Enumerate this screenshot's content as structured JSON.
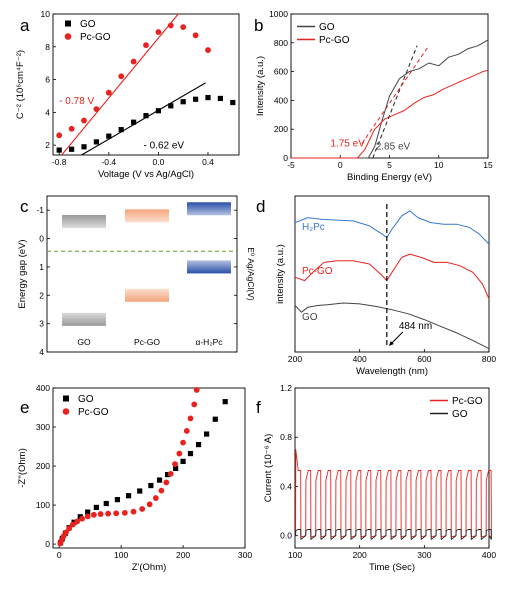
{
  "chart_data": [
    {
      "panel": "a",
      "type": "scatter",
      "xlabel": "Voltage (V vs Ag/AgCl)",
      "ylabel": "C⁻² (10⁶cm⁴F⁻²)",
      "xlim": [
        -0.85,
        0.65
      ],
      "ylim": [
        1.4,
        10
      ],
      "xticks": [
        -0.8,
        -0.4,
        0.0,
        0.4
      ],
      "yticks": [
        2,
        4,
        6,
        8,
        10
      ],
      "legend_position": "top-left",
      "series": [
        {
          "name": "GO",
          "marker": "square",
          "color": "#000000",
          "x": [
            -0.8,
            -0.7,
            -0.6,
            -0.5,
            -0.4,
            -0.3,
            -0.2,
            -0.1,
            0.0,
            0.1,
            0.2,
            0.3,
            0.4,
            0.5,
            0.6
          ],
          "y": [
            1.7,
            1.75,
            1.9,
            2.2,
            2.55,
            2.95,
            3.4,
            3.8,
            4.1,
            4.4,
            4.65,
            4.8,
            4.9,
            4.85,
            4.6
          ]
        },
        {
          "name": "Pc-GO",
          "marker": "circle",
          "color": "#e8231f",
          "x": [
            -0.8,
            -0.7,
            -0.6,
            -0.5,
            -0.4,
            -0.3,
            -0.2,
            -0.1,
            0.0,
            0.1,
            0.2,
            0.3,
            0.4
          ],
          "y": [
            2.6,
            3.0,
            3.5,
            4.2,
            5.2,
            6.2,
            7.1,
            8.1,
            8.9,
            9.3,
            9.2,
            8.7,
            7.8
          ]
        }
      ],
      "fit_lines": [
        {
          "color": "#e8231f",
          "x": [
            -0.78,
            0.16
          ],
          "y": [
            1.4,
            10.0
          ]
        },
        {
          "color": "#000000",
          "x": [
            -0.62,
            0.38
          ],
          "y": [
            1.4,
            5.8
          ]
        }
      ],
      "annotations": [
        {
          "text": "- 0.78 V",
          "color": "#e8231f",
          "x": -0.8,
          "y": 4.5
        },
        {
          "text": "- 0.62 eV",
          "color": "#000000",
          "x": -0.12,
          "y": 1.8
        }
      ]
    },
    {
      "panel": "b",
      "type": "line",
      "xlabel": "Binding Energy (eV)",
      "ylabel": "Intensity (a.u.)",
      "xlim": [
        -5,
        15
      ],
      "ylim": [
        0,
        1000
      ],
      "xticks": [
        -5,
        0,
        5,
        10,
        15
      ],
      "yticks": [
        0,
        200,
        400,
        600,
        800,
        1000
      ],
      "legend_position": "top-left",
      "series": [
        {
          "name": "GO",
          "color": "#444444",
          "x": [
            -5,
            0,
            1.75,
            2.85,
            3.5,
            4.2,
            5.0,
            6.0,
            7.0,
            8.0,
            9.0,
            10.0,
            11.0,
            12.0,
            13.0,
            14.0,
            15.0
          ],
          "y": [
            0,
            0,
            0,
            0,
            80,
            250,
            430,
            550,
            600,
            620,
            660,
            640,
            700,
            720,
            760,
            780,
            820
          ]
        },
        {
          "name": "Pc-GO",
          "color": "#e8231f",
          "x": [
            -5,
            0,
            1.75,
            2.5,
            3.5,
            4.5,
            5.5,
            6.5,
            7.5,
            8.5,
            9.5,
            10.5,
            11.5,
            12.5,
            13.5,
            14.5,
            15.0
          ],
          "y": [
            0,
            0,
            0,
            60,
            200,
            270,
            300,
            330,
            380,
            420,
            440,
            480,
            510,
            540,
            570,
            600,
            610
          ]
        }
      ],
      "fit_lines": [
        {
          "color": "#222222",
          "style": "dashed",
          "x": [
            3.3,
            7.8
          ],
          "y": [
            0,
            780
          ]
        },
        {
          "color": "#e8231f",
          "style": "dashed",
          "x": [
            2.2,
            9.0
          ],
          "y": [
            100,
            780
          ]
        }
      ],
      "annotations": [
        {
          "text": "1.75 eV",
          "color": "#e8231f",
          "x": -1.0,
          "y": 80
        },
        {
          "text": "2.85 eV",
          "color": "#444444",
          "x": 3.6,
          "y": 60
        }
      ]
    },
    {
      "panel": "c",
      "type": "diagram",
      "ylabel": "Energy gap (eV)",
      "right_label": "E⁰ Ag/AgCl(V)",
      "ylim": [
        -1.5,
        4
      ],
      "yticks": [
        -1,
        0,
        1,
        2,
        3,
        4
      ],
      "dashed_level": 0.45,
      "categories": [
        "GO",
        "Pc-GO",
        "α-H₂Pc"
      ],
      "bands": [
        {
          "category": "GO",
          "top": -0.6,
          "bottom": 2.85,
          "color": "#999999"
        },
        {
          "category": "Pc-GO",
          "top": -0.8,
          "bottom": 2.0,
          "color": "#f4a57c"
        },
        {
          "category": "α-H₂Pc",
          "top": -1.05,
          "bottom": 1.0,
          "color": "#2a4fa8"
        }
      ]
    },
    {
      "panel": "d",
      "type": "line",
      "xlabel": "Wavelength (nm)",
      "ylabel": "intensity (a.u.)",
      "xlim": [
        200,
        800
      ],
      "xticks": [
        200,
        400,
        600,
        800
      ],
      "marker_line": 484,
      "marker_label": "484 nm",
      "series": [
        {
          "name": "H₂Pc",
          "color": "#3a78d4",
          "x": [
            200,
            240,
            280,
            330,
            380,
            430,
            470,
            484,
            500,
            530,
            555,
            580,
            620,
            660,
            700,
            740,
            770,
            800
          ],
          "y": [
            7.6,
            7.9,
            7.8,
            7.75,
            7.7,
            7.4,
            6.9,
            6.7,
            7.2,
            8.0,
            8.3,
            7.9,
            7.6,
            7.5,
            7.5,
            7.3,
            6.9,
            6.3
          ]
        },
        {
          "name": "Pc-GO",
          "color": "#e8231f",
          "x": [
            200,
            230,
            260,
            290,
            330,
            380,
            430,
            470,
            484,
            500,
            530,
            555,
            590,
            630,
            670,
            710,
            750,
            780,
            800
          ],
          "y": [
            4.3,
            4.1,
            4.7,
            5.2,
            5.3,
            5.3,
            5.1,
            4.4,
            4.1,
            4.6,
            5.5,
            5.7,
            5.5,
            5.2,
            5.2,
            5.0,
            4.6,
            3.9,
            3.0
          ]
        },
        {
          "name": "GO",
          "color": "#444444",
          "x": [
            200,
            220,
            240,
            270,
            300,
            350,
            400,
            450,
            500,
            550,
            600,
            650,
            700,
            750,
            800
          ],
          "y": [
            2.6,
            2.2,
            2.5,
            2.6,
            2.65,
            2.75,
            2.7,
            2.55,
            2.35,
            2.1,
            1.75,
            1.35,
            0.95,
            0.5,
            0.0
          ]
        }
      ]
    },
    {
      "panel": "e",
      "type": "scatter",
      "xlabel": "Z'(Ohm)",
      "ylabel": "-Z''(Ohm)",
      "xlim": [
        -10,
        300
      ],
      "ylim": [
        -10,
        400
      ],
      "xticks": [
        0,
        100,
        200,
        300
      ],
      "yticks": [
        0,
        100,
        200,
        300,
        400
      ],
      "legend_position": "top-left",
      "series": [
        {
          "name": "GO",
          "marker": "square",
          "color": "#000000",
          "x": [
            2,
            5,
            10,
            16,
            24,
            34,
            46,
            60,
            76,
            94,
            112,
            130,
            148,
            162,
            175,
            188,
            200,
            212,
            225,
            238,
            252,
            268
          ],
          "y": [
            3,
            14,
            28,
            42,
            56,
            70,
            82,
            94,
            104,
            114,
            124,
            136,
            150,
            164,
            178,
            194,
            212,
            232,
            255,
            282,
            320,
            365
          ]
        },
        {
          "name": "Pc-GO",
          "marker": "circle",
          "color": "#e8231f",
          "x": [
            2,
            4,
            7,
            11,
            16,
            22,
            29,
            37,
            46,
            56,
            67,
            79,
            92,
            106,
            120,
            134,
            146,
            156,
            165,
            173,
            180,
            187,
            194,
            200,
            206,
            212,
            218,
            222
          ],
          "y": [
            2,
            10,
            20,
            30,
            40,
            50,
            58,
            65,
            71,
            75,
            77,
            78,
            79,
            80,
            83,
            90,
            102,
            118,
            137,
            158,
            180,
            205,
            232,
            260,
            290,
            322,
            358,
            395
          ]
        }
      ]
    },
    {
      "panel": "f",
      "type": "line",
      "xlabel": "Time (Sec)",
      "ylabel": "Current (10⁻⁶ A)",
      "xlim": [
        100,
        400
      ],
      "ylim": [
        -0.1,
        1.2
      ],
      "xticks": [
        100,
        200,
        300,
        400
      ],
      "yticks": [
        0.0,
        0.4,
        0.8,
        1.2
      ],
      "legend_position": "top-right",
      "series": [
        {
          "name": "Pc-GO",
          "color": "#e8231f",
          "pulse_period": 15.5,
          "on_level": 0.53,
          "off_level": 0.0,
          "first_peak": 0.7
        },
        {
          "name": "GO",
          "color": "#222222",
          "pulse_period": 15.5,
          "on_level": 0.05,
          "off_level": 0.0
        }
      ]
    }
  ]
}
